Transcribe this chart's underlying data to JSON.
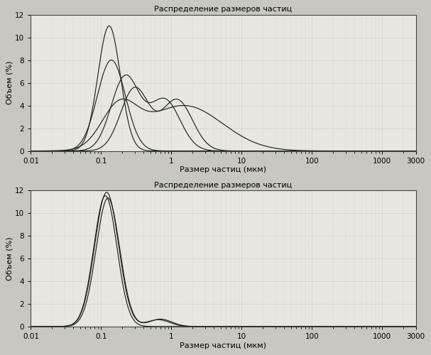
{
  "title": "Распределение размеров частиц",
  "xlabel": "Размер частиц (мкм)",
  "ylabel": "Объем (%)",
  "xlim": [
    0.01,
    3000
  ],
  "ylim": [
    0,
    12
  ],
  "yticks": [
    0,
    2,
    4,
    6,
    8,
    10,
    12
  ],
  "xtick_values": [
    0.01,
    0.1,
    1,
    10,
    100,
    1000,
    3000
  ],
  "xtick_labels": [
    "0.01",
    "0.1",
    "1",
    "10",
    "100",
    "1000",
    "3000"
  ],
  "bg_color": "#e8e8e0",
  "fig_color": "#c8c8c0",
  "line_color": "#222222",
  "grid_color": "#aaaaaa"
}
